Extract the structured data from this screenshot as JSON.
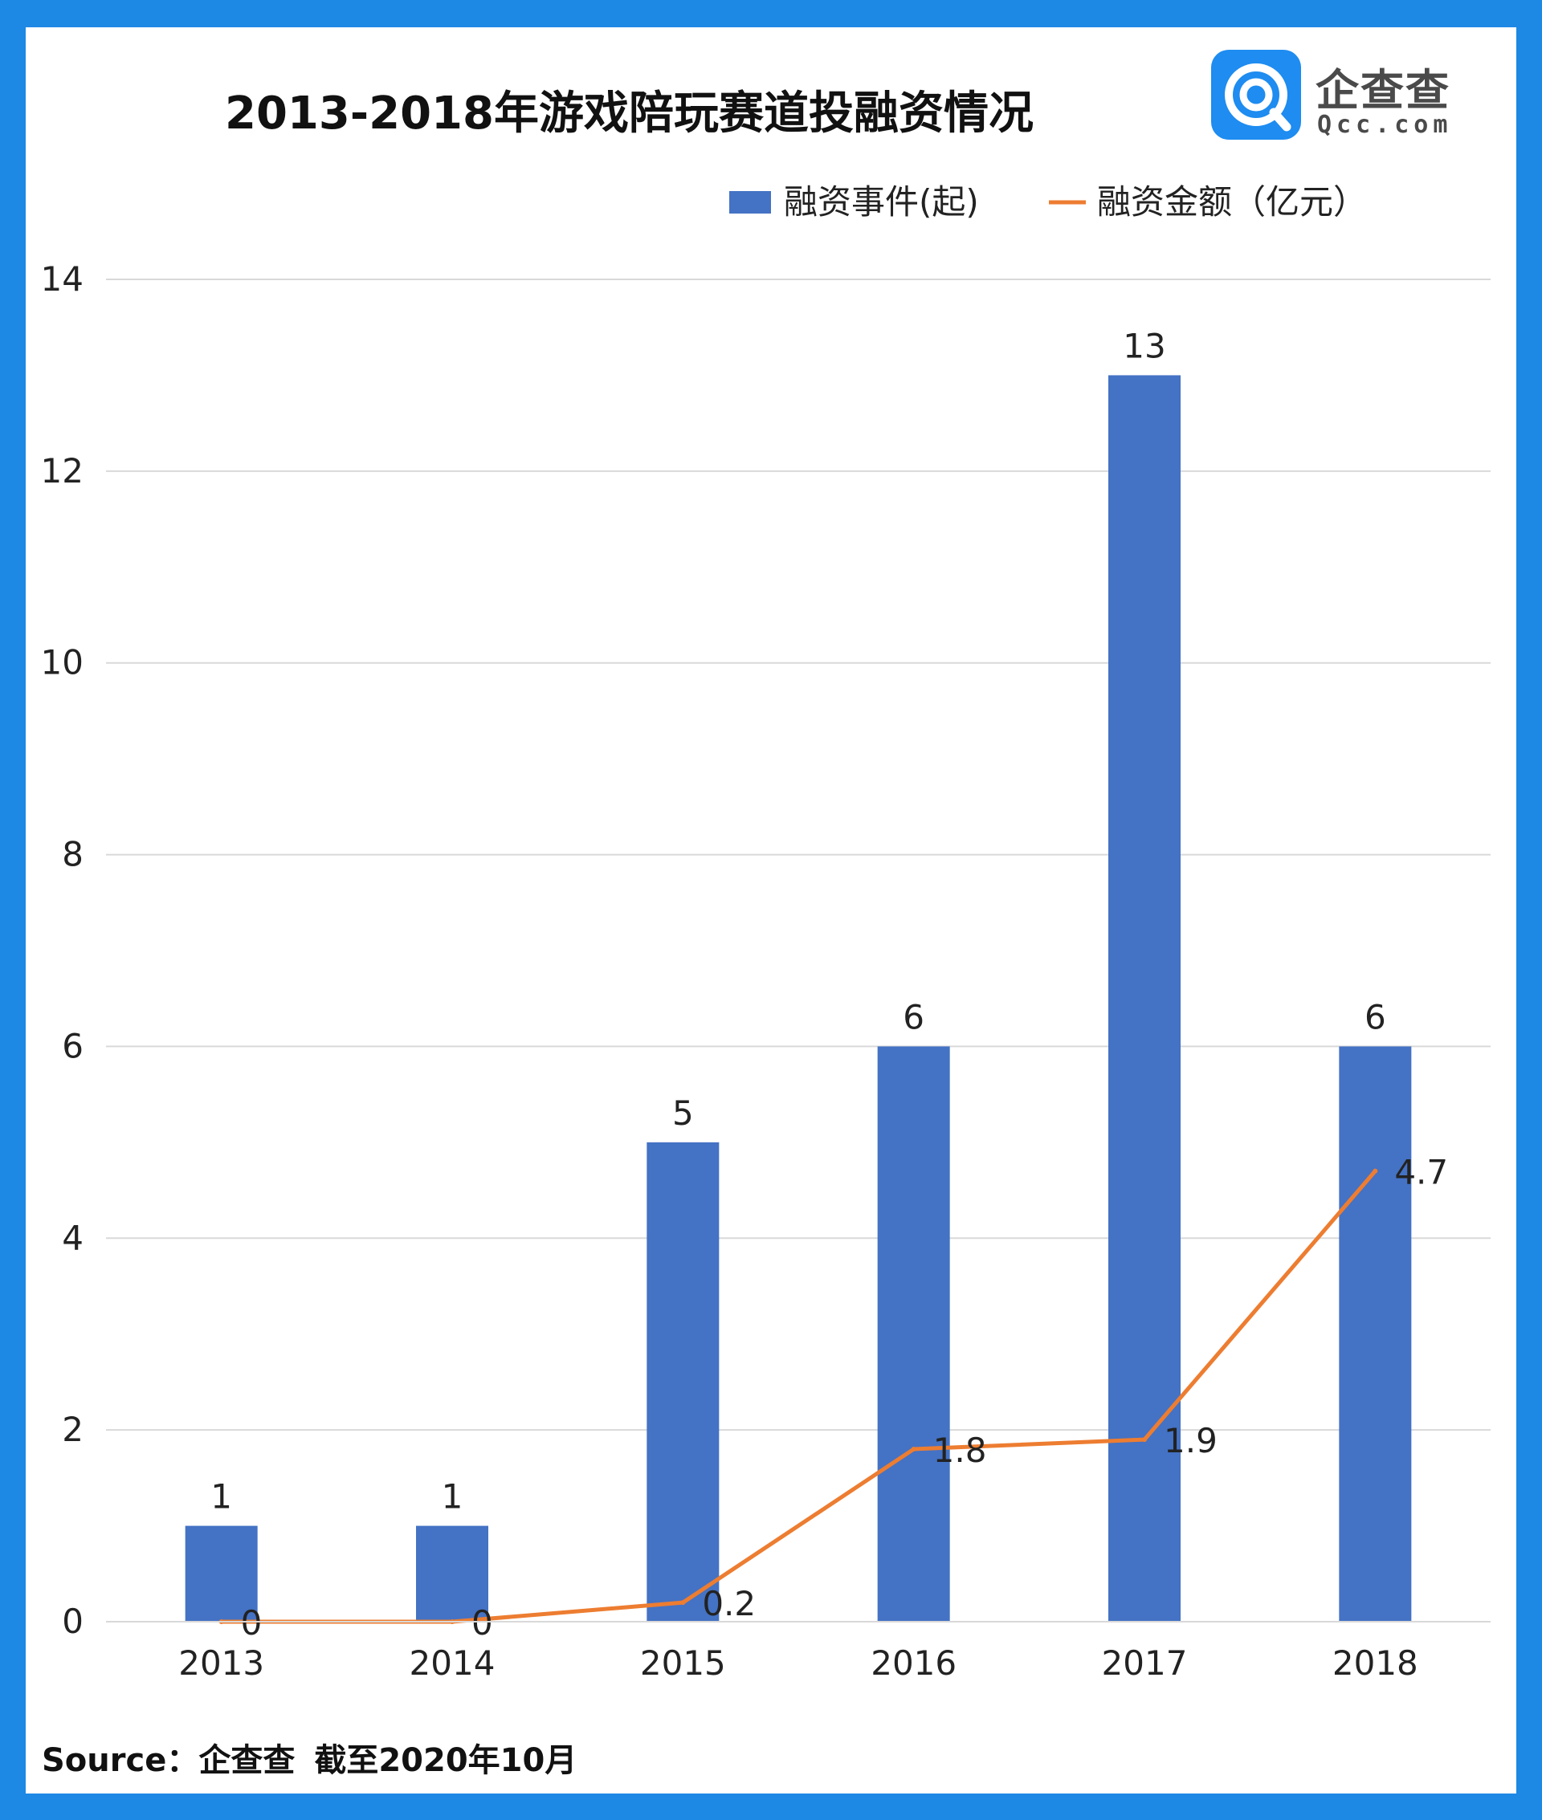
{
  "chart_data": {
    "type": "bar",
    "title": "2013-2018年游戏陪玩赛道投融资情况",
    "categories": [
      "2013",
      "2014",
      "2015",
      "2016",
      "2017",
      "2018"
    ],
    "series": [
      {
        "name": "融资事件(起)",
        "kind": "bar",
        "color": "#4472C4",
        "values": [
          1,
          1,
          5,
          6,
          13,
          6
        ],
        "labels": [
          "1",
          "1",
          "5",
          "6",
          "13",
          "6"
        ]
      },
      {
        "name": "融资金额（亿元）",
        "kind": "line",
        "color": "#ED7D31",
        "values": [
          0,
          0,
          0.2,
          1.8,
          1.9,
          4.7
        ],
        "labels": [
          "0",
          "0",
          "0.2",
          "1.8",
          "1.9",
          "4.7"
        ]
      }
    ],
    "ylim": [
      0,
      14
    ],
    "yticks": [
      0,
      2,
      4,
      6,
      8,
      10,
      12,
      14
    ],
    "grid": true,
    "legend_position": "top-right"
  },
  "logo": {
    "name": "企查查",
    "domain": "Qcc.com"
  },
  "footer": {
    "source": "Source：企查查",
    "note": "截至2020年10月"
  }
}
